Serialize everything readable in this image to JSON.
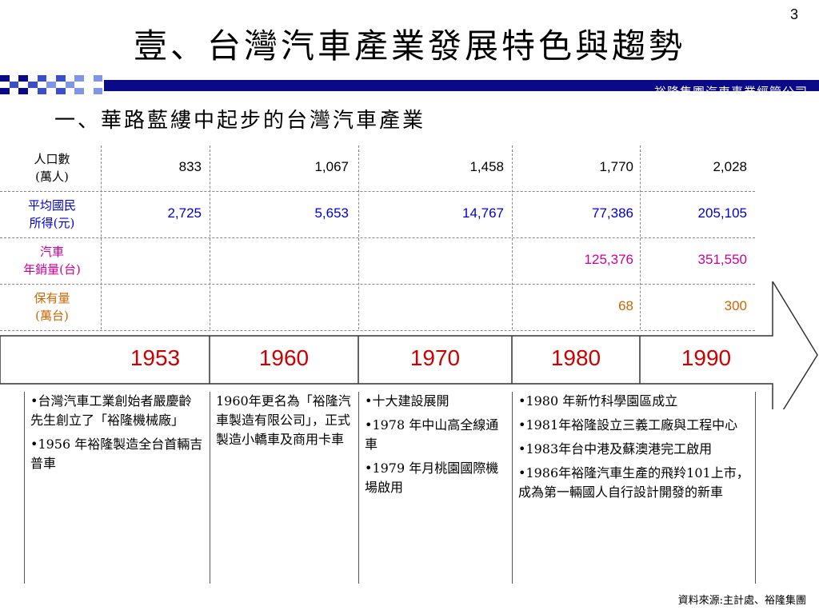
{
  "page_number": "3",
  "title": "壹、台灣汽車產業發展特色與趨勢",
  "company": "裕隆集團汽車事業經管公司",
  "subtitle": "一、華路藍縷中起步的台灣汽車產業",
  "colors": {
    "band": "#0a0a88",
    "blue": "#0000cc",
    "magenta": "#cc0099",
    "orange": "#cc6600",
    "red": "#cc0000"
  },
  "stats": [
    {
      "label_1": "人口數",
      "label_2": "(萬人)",
      "color": "#000000",
      "values": [
        "833",
        "1,067",
        "1,458",
        "1,770",
        "2,028"
      ]
    },
    {
      "label_1": "平均國民",
      "label_2": "所得(元)",
      "color": "#0000cc",
      "values": [
        "2,725",
        "5,653",
        "14,767",
        "77,386",
        "205,105"
      ]
    },
    {
      "label_1": "汽車",
      "label_2": "年銷量(台)",
      "color": "#cc0099",
      "values": [
        "",
        "",
        "",
        "125,376",
        "351,550"
      ]
    },
    {
      "label_1": "保有量",
      "label_2": "(萬台)",
      "color": "#cc6600",
      "values": [
        "",
        "",
        "",
        "68",
        "300"
      ]
    }
  ],
  "years": [
    "1953",
    "1960",
    "1970",
    "1980",
    "1990"
  ],
  "events": [
    [
      "•台灣汽車工業創始者嚴慶齡先生創立了「裕隆機械廠」",
      "•1956 年裕隆製造全台首輛吉普車"
    ],
    [
      "1960年更名為「裕隆汽車製造有限公司」，正式製造小轎車及商用卡車"
    ],
    [
      "•十大建設展開",
      "•1978 年中山高全線通車",
      "•1979 年月桃園國際機場啟用"
    ],
    [
      "•1980 年新竹科學園區成立",
      "•1981年裕隆設立三義工廠與工程中心",
      "•1983年台中港及蘇澳港完工啟用",
      "•1986年裕隆汽車生產的飛羚101上市，成為第一輛國人自行設計開發的新車"
    ]
  ],
  "source": "資料來源:主計處、裕隆集團"
}
